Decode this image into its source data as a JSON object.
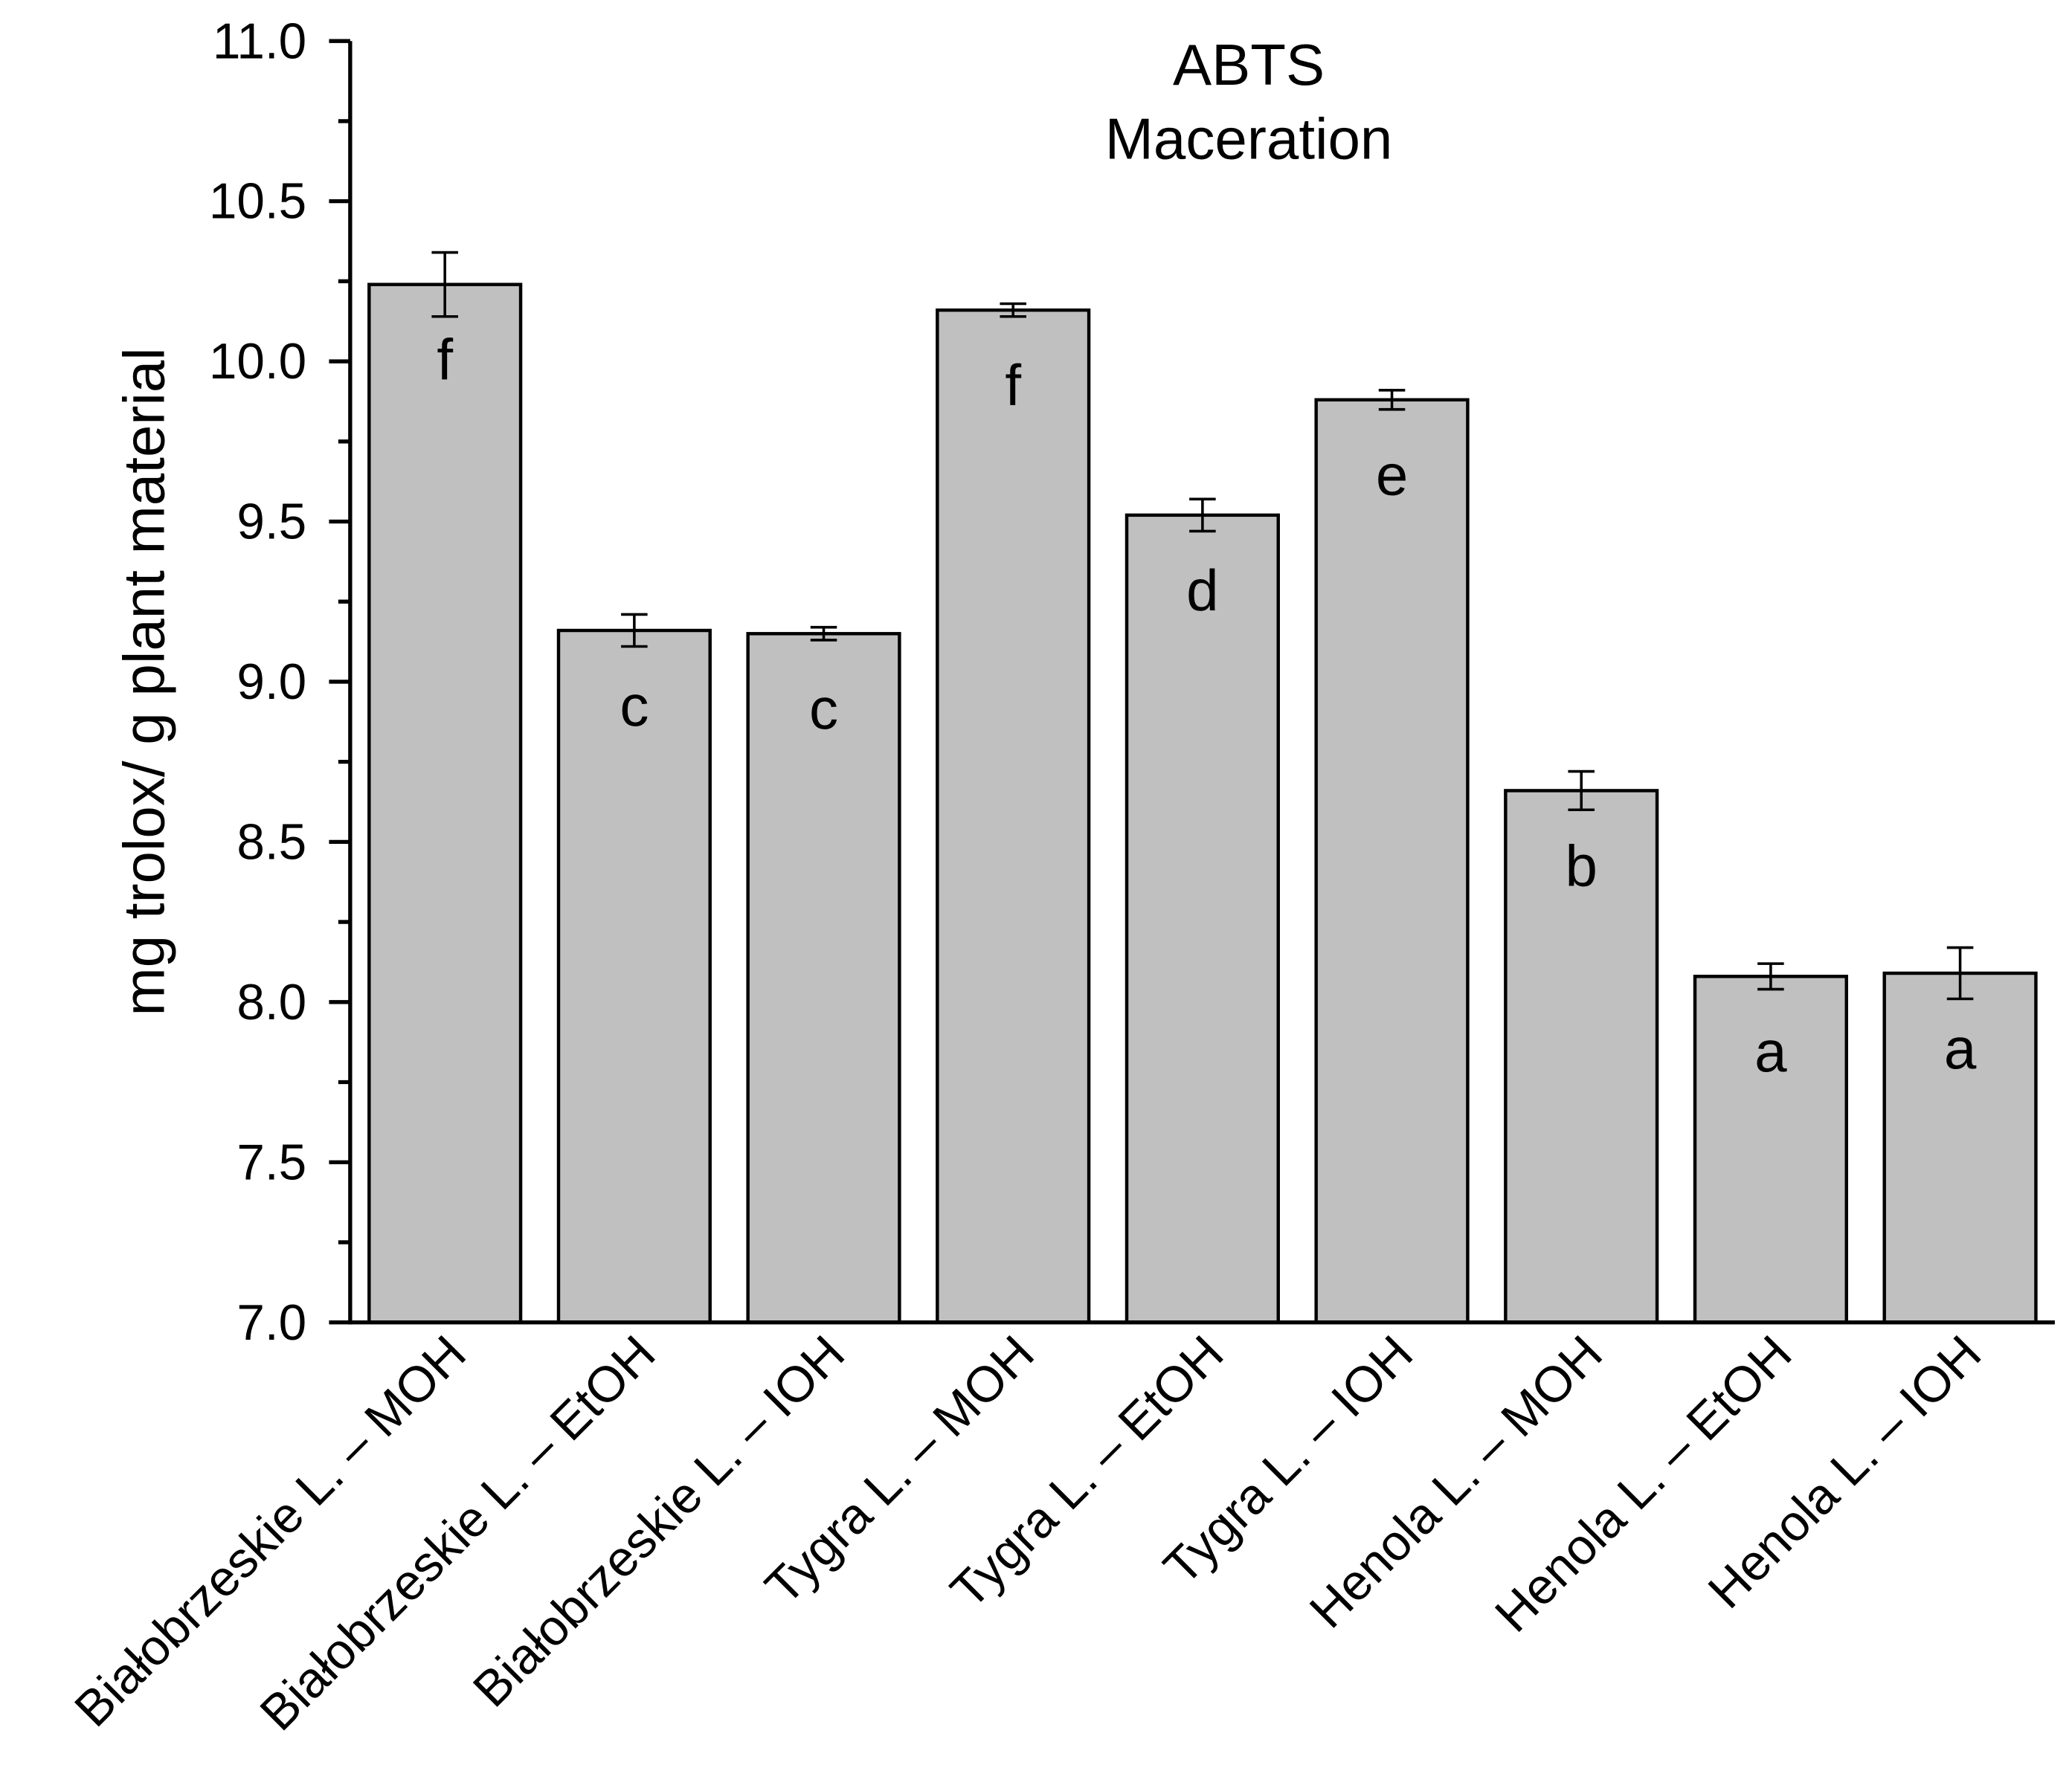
{
  "chart_data": {
    "type": "bar",
    "title": "ABTS",
    "subtitle": "Maceration",
    "y_label": "mg trolox/ g plant material",
    "categories": [
      "Białobrzeskie L. – MOH",
      "Białobrzeskie L. – EtOH",
      "Białobrzeskie L. – IOH",
      "Tygra L. – MOH",
      "Tygra L. – EtOH",
      "Tygra L. – IOH",
      "Henola L. – MOH",
      "Henola L. – EtOH",
      "Henola L. – IOH"
    ],
    "values": [
      10.24,
      9.16,
      9.15,
      10.16,
      9.52,
      9.88,
      8.66,
      8.08,
      8.09
    ],
    "errors": [
      0.1,
      0.05,
      0.02,
      0.02,
      0.05,
      0.03,
      0.06,
      0.04,
      0.08
    ],
    "letters": [
      "f",
      "c",
      "c",
      "f",
      "d",
      "e",
      "b",
      "a",
      "a"
    ],
    "color": "#c0c0c0",
    "ylim": [
      7.0,
      11.0
    ],
    "yticks": [
      {
        "value": 7.0,
        "label": "7.0"
      },
      7.5,
      {
        "value": 8.0,
        "label": "8.0"
      },
      8.5,
      {
        "value": 9.0,
        "label": "9.0"
      },
      9.5,
      {
        "value": 10.0,
        "label": "10.0"
      },
      10.5,
      {
        "value": 11.0,
        "label": "11.0"
      }
    ],
    "grid": false
  }
}
